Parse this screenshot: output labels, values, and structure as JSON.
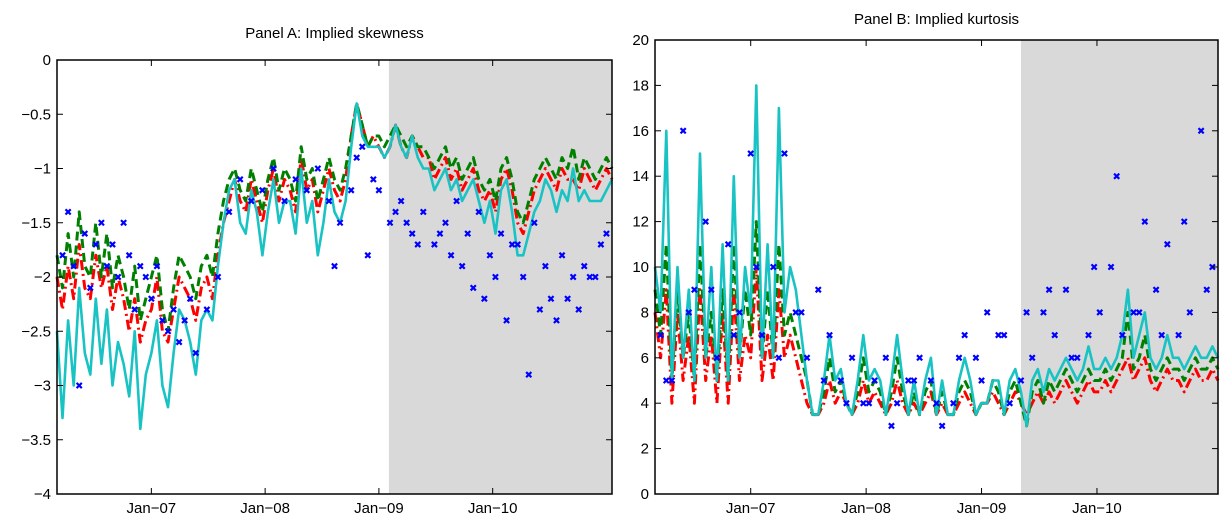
{
  "chart_data": [
    {
      "type": "line",
      "title": "Panel A: Implied skewness",
      "ylim": [
        -4,
        0
      ],
      "xlim": [
        0,
        100
      ],
      "yticks": [
        0,
        -0.5,
        -1,
        -1.5,
        -2,
        -2.5,
        -3,
        -3.5,
        -4
      ],
      "ytick_labels": [
        "0",
        "−0.5",
        "−1",
        "−1.5",
        "−2",
        "−2.5",
        "−3",
        "−3.5",
        "−4"
      ],
      "xtick_positions": [
        17,
        37.5,
        58,
        78.5
      ],
      "xtick_labels": [
        "Jan−07",
        "Jan−08",
        "Jan−09",
        "Jan−10"
      ],
      "shaded_region": [
        59.8,
        100
      ],
      "colors": {
        "markers": "#0000ff",
        "red": "#ff0000",
        "green": "#008000",
        "cyan": "#19c3c3",
        "shade": "#d9d9d9"
      },
      "x": [
        0,
        1,
        2,
        3,
        4,
        5,
        6,
        7,
        8,
        9,
        10,
        11,
        12,
        13,
        14,
        15,
        16,
        17,
        18,
        19,
        20,
        21,
        22,
        23,
        24,
        25,
        26,
        27,
        28,
        29,
        30,
        31,
        32,
        33,
        34,
        35,
        36,
        37,
        38,
        39,
        40,
        41,
        42,
        43,
        44,
        45,
        46,
        47,
        48,
        49,
        50,
        51,
        52,
        53,
        54,
        55,
        56,
        57,
        58,
        59,
        60,
        61,
        62,
        63,
        64,
        65,
        66,
        67,
        68,
        69,
        70,
        71,
        72,
        73,
        74,
        75,
        76,
        77,
        78,
        79,
        80,
        81,
        82,
        83,
        84,
        85,
        86,
        87,
        88,
        89,
        90,
        91,
        92,
        93,
        94,
        95,
        96,
        97,
        98,
        99,
        100
      ],
      "series": [
        {
          "style": "dashdot",
          "color": "#ff0000",
          "values": [
            -2.0,
            -2.3,
            -1.9,
            -2.2,
            -1.7,
            -2.1,
            -2.2,
            -1.8,
            -2.1,
            -1.9,
            -2.3,
            -2.0,
            -2.2,
            -2.5,
            -2.2,
            -2.6,
            -2.4,
            -2.3,
            -2.0,
            -2.5,
            -2.6,
            -2.3,
            -2.0,
            -2.1,
            -2.2,
            -2.4,
            -2.1,
            -2.0,
            -2.2,
            -1.8,
            -1.5,
            -1.3,
            -1.1,
            -1.3,
            -1.4,
            -1.1,
            -1.3,
            -1.5,
            -1.2,
            -1.0,
            -1.3,
            -1.1,
            -1.2,
            -1.4,
            -0.9,
            -1.2,
            -1.1,
            -1.4,
            -1.2,
            -1.0,
            -1.2,
            -1.3,
            -1.1,
            -0.7,
            -0.4,
            -0.6,
            -0.8,
            -0.7,
            -0.8,
            -0.9,
            -0.8,
            -0.6,
            -0.8,
            -0.9,
            -0.7,
            -0.8,
            -0.9,
            -0.9,
            -1.1,
            -1.0,
            -0.9,
            -1.1,
            -1.0,
            -1.2,
            -1.1,
            -1.0,
            -1.2,
            -1.3,
            -1.2,
            -1.4,
            -1.1,
            -1.0,
            -1.2,
            -1.5,
            -1.6,
            -1.4,
            -1.2,
            -1.1,
            -1.0,
            -1.1,
            -1.2,
            -1.0,
            -1.1,
            -1.1,
            -1.2,
            -1.0,
            -1.1,
            -1.2,
            -1.1,
            -1.0,
            -1.1
          ]
        },
        {
          "style": "dashed",
          "color": "#008000",
          "values": [
            -1.8,
            -2.1,
            -1.6,
            -2.0,
            -1.4,
            -1.9,
            -2.0,
            -1.5,
            -2.0,
            -1.6,
            -2.1,
            -1.8,
            -2.0,
            -2.3,
            -1.9,
            -2.4,
            -2.2,
            -2.0,
            -1.8,
            -2.3,
            -2.5,
            -2.1,
            -1.8,
            -1.9,
            -2.0,
            -2.2,
            -1.9,
            -1.8,
            -2.0,
            -1.6,
            -1.3,
            -1.1,
            -1.0,
            -1.2,
            -1.3,
            -1.0,
            -1.2,
            -1.4,
            -1.1,
            -0.9,
            -1.2,
            -1.0,
            -1.1,
            -1.3,
            -0.8,
            -1.1,
            -1.0,
            -1.3,
            -1.1,
            -0.9,
            -1.1,
            -1.2,
            -1.0,
            -0.7,
            -0.4,
            -0.6,
            -0.8,
            -0.7,
            -0.7,
            -0.8,
            -0.7,
            -0.6,
            -0.7,
            -0.8,
            -0.7,
            -0.8,
            -0.8,
            -0.9,
            -1.0,
            -0.9,
            -0.8,
            -1.0,
            -0.9,
            -1.1,
            -1.0,
            -0.9,
            -1.1,
            -1.2,
            -1.1,
            -1.3,
            -1.0,
            -0.9,
            -1.1,
            -1.4,
            -1.5,
            -1.3,
            -1.1,
            -1.0,
            -0.9,
            -1.0,
            -1.1,
            -0.9,
            -1.0,
            -0.8,
            -1.1,
            -0.9,
            -1.0,
            -1.1,
            -1.0,
            -0.9,
            -1.0
          ]
        },
        {
          "style": "solid",
          "color": "#19c3c3",
          "values": [
            -2.5,
            -3.3,
            -2.4,
            -3.0,
            -2.1,
            -2.7,
            -2.9,
            -2.2,
            -2.8,
            -2.3,
            -3.0,
            -2.6,
            -2.8,
            -3.1,
            -2.5,
            -3.4,
            -2.9,
            -2.7,
            -2.4,
            -3.0,
            -3.2,
            -2.7,
            -2.3,
            -2.4,
            -2.6,
            -2.9,
            -2.4,
            -2.3,
            -2.4,
            -1.9,
            -1.5,
            -1.2,
            -1.1,
            -1.5,
            -1.6,
            -1.2,
            -1.4,
            -1.8,
            -1.4,
            -1.1,
            -1.5,
            -1.3,
            -1.3,
            -1.6,
            -1.0,
            -1.5,
            -1.3,
            -1.8,
            -1.5,
            -1.1,
            -1.4,
            -1.5,
            -1.3,
            -0.8,
            -0.4,
            -0.7,
            -0.8,
            -0.8,
            -0.8,
            -0.9,
            -0.8,
            -0.6,
            -0.8,
            -0.9,
            -0.7,
            -0.9,
            -1.0,
            -1.0,
            -1.2,
            -1.1,
            -1.0,
            -1.2,
            -1.1,
            -1.3,
            -1.2,
            -1.1,
            -1.3,
            -1.5,
            -1.3,
            -1.6,
            -1.2,
            -1.1,
            -1.4,
            -1.8,
            -1.8,
            -1.6,
            -1.4,
            -1.3,
            -1.1,
            -1.2,
            -1.4,
            -1.2,
            -1.3,
            -1.0,
            -1.3,
            -1.2,
            -1.3,
            -1.3,
            -1.3,
            -1.2,
            -1.1
          ]
        }
      ],
      "markers": {
        "x": [
          1,
          2,
          3,
          4,
          5,
          6,
          7,
          8,
          9,
          10,
          11,
          12,
          13,
          14,
          15,
          16,
          17,
          18,
          19,
          20,
          21,
          22,
          23,
          24,
          25,
          27,
          29,
          31,
          33,
          35,
          37,
          39,
          41,
          43,
          45,
          47,
          49,
          51,
          53,
          55,
          57,
          58,
          60,
          62,
          64,
          66,
          68,
          70,
          72,
          74,
          76,
          78,
          80,
          82,
          84,
          86,
          88,
          90,
          92,
          94,
          96,
          98,
          99,
          50,
          54,
          56,
          61,
          63,
          65,
          69,
          71,
          73,
          75,
          77,
          79,
          81,
          83,
          85,
          87,
          89,
          91,
          93,
          95,
          97
        ],
        "y": [
          -1.8,
          -1.4,
          -1.9,
          -3.0,
          -1.6,
          -2.1,
          -1.7,
          -1.5,
          -1.9,
          -1.7,
          -2.0,
          -1.5,
          -1.8,
          -2.3,
          -1.9,
          -2.0,
          -2.2,
          -1.9,
          -2.4,
          -2.5,
          -2.3,
          -2.6,
          -2.4,
          -2.2,
          -2.7,
          -2.3,
          -2.0,
          -1.4,
          -1.1,
          -1.3,
          -1.2,
          -1.0,
          -1.3,
          -1.1,
          -1.2,
          -1.0,
          -1.3,
          -1.5,
          -1.2,
          -0.8,
          -1.1,
          -1.2,
          -1.5,
          -1.3,
          -1.6,
          -1.4,
          -1.7,
          -1.5,
          -1.3,
          -1.6,
          -1.4,
          -1.8,
          -1.6,
          -1.7,
          -2.0,
          -1.5,
          -1.9,
          -2.4,
          -2.2,
          -2.3,
          -2.0,
          -1.7,
          -1.6,
          -1.9,
          -0.9,
          -1.8,
          -1.4,
          -1.5,
          -1.7,
          -1.6,
          -1.8,
          -1.9,
          -2.1,
          -2.2,
          -2.0,
          -2.4,
          -1.7,
          -2.9,
          -2.3,
          -2.2,
          -1.8,
          -2.0,
          -1.9,
          -2.0
        ]
      }
    },
    {
      "type": "line",
      "title": "Panel B: Implied kurtosis",
      "ylim": [
        0,
        20
      ],
      "xlim": [
        0,
        100
      ],
      "yticks": [
        0,
        2,
        4,
        6,
        8,
        10,
        12,
        14,
        16,
        18,
        20
      ],
      "ytick_labels": [
        "0",
        "2",
        "4",
        "6",
        "8",
        "10",
        "12",
        "14",
        "16",
        "18",
        "20"
      ],
      "xtick_positions": [
        17,
        37.5,
        58,
        78.5
      ],
      "xtick_labels": [
        "Jan−07",
        "Jan−08",
        "Jan−09",
        "Jan−10"
      ],
      "shaded_region": [
        65,
        100
      ],
      "colors": {
        "markers": "#0000ff",
        "red": "#ff0000",
        "green": "#008000",
        "cyan": "#19c3c3",
        "shade": "#d9d9d9"
      },
      "x": [
        0,
        1,
        2,
        3,
        4,
        5,
        6,
        7,
        8,
        9,
        10,
        11,
        12,
        13,
        14,
        15,
        16,
        17,
        18,
        19,
        20,
        21,
        22,
        23,
        24,
        25,
        26,
        27,
        28,
        29,
        30,
        31,
        32,
        33,
        34,
        35,
        36,
        37,
        38,
        39,
        40,
        41,
        42,
        43,
        44,
        45,
        46,
        47,
        48,
        49,
        50,
        51,
        52,
        53,
        54,
        55,
        56,
        57,
        58,
        59,
        60,
        61,
        62,
        63,
        64,
        65,
        66,
        67,
        68,
        69,
        70,
        71,
        72,
        73,
        74,
        75,
        76,
        77,
        78,
        79,
        80,
        81,
        82,
        83,
        84,
        85,
        86,
        87,
        88,
        89,
        90,
        91,
        92,
        93,
        94,
        95,
        96,
        97,
        98,
        99,
        100
      ],
      "series": [
        {
          "style": "dashdot",
          "color": "#ff0000",
          "values": [
            8,
            6,
            9,
            4,
            8,
            5,
            7,
            4,
            9,
            5,
            7,
            4,
            8,
            4,
            9,
            5,
            7,
            6,
            10,
            5,
            7,
            5,
            9,
            6,
            7,
            6,
            5,
            4,
            3.5,
            3.5,
            4,
            5,
            4,
            4.5,
            4,
            3.5,
            4,
            5,
            4,
            4.5,
            4,
            3.5,
            4,
            5,
            4,
            3.5,
            4,
            3.5,
            4,
            4.5,
            3.5,
            4,
            3.5,
            3.5,
            4,
            4.5,
            4,
            3.5,
            4,
            4,
            4.5,
            4,
            3.5,
            4,
            4.5,
            4,
            3.5,
            4,
            4.5,
            4,
            4.5,
            4,
            4.5,
            5,
            4.5,
            4,
            4.5,
            5,
            4.5,
            4.5,
            5,
            4.5,
            5,
            5.5,
            6,
            5,
            5.5,
            6,
            5,
            4.5,
            5,
            5.5,
            5,
            5,
            4.5,
            5,
            5.5,
            5,
            5,
            5.5,
            5
          ]
        },
        {
          "style": "dashed",
          "color": "#008000",
          "values": [
            9,
            7,
            11,
            5,
            9,
            6,
            8,
            5,
            11,
            6,
            8,
            5,
            9,
            5,
            11,
            6,
            9,
            7,
            12,
            6,
            9,
            6,
            11,
            7,
            8,
            7,
            6,
            5,
            3.5,
            3.5,
            4.5,
            6,
            4.5,
            5,
            4,
            3.5,
            4.5,
            6,
            4.5,
            5,
            4.5,
            3.5,
            4.5,
            6,
            4.5,
            3.5,
            4.5,
            3.5,
            4.5,
            5,
            3.5,
            4.5,
            3.5,
            3.5,
            4.5,
            5,
            4.5,
            3.5,
            4,
            4,
            5,
            4.5,
            3.5,
            4.5,
            5,
            4,
            3,
            4.5,
            5,
            4,
            5,
            4.5,
            5,
            5.5,
            5,
            4.5,
            5,
            5.5,
            5,
            5,
            5.5,
            5,
            5.5,
            6,
            8,
            5.5,
            6,
            7,
            5.5,
            5,
            5.5,
            6,
            5.5,
            5.5,
            5,
            5.5,
            6,
            5.5,
            5.5,
            6,
            5.5
          ]
        },
        {
          "style": "solid",
          "color": "#19c3c3",
          "values": [
            10,
            8,
            16,
            5,
            10,
            6,
            9,
            5,
            15,
            6,
            10,
            5,
            11,
            5,
            14,
            6,
            10,
            8,
            18,
            6,
            11,
            6,
            17,
            8,
            10,
            9,
            7,
            5,
            3.5,
            3.5,
            5,
            7,
            5,
            5.5,
            4,
            3.5,
            5,
            7,
            5,
            5.5,
            5,
            3.5,
            5,
            7,
            5,
            3.5,
            5,
            3.5,
            5,
            6,
            3.5,
            5,
            3.5,
            3.5,
            5,
            6,
            5,
            3.5,
            4,
            4,
            5,
            5,
            3.5,
            5,
            5.5,
            4.5,
            3,
            5,
            5.5,
            4.5,
            5.5,
            5,
            5.5,
            6,
            5.5,
            5,
            5.5,
            6.5,
            5.5,
            5.5,
            6,
            5.5,
            6,
            7,
            9,
            6,
            7,
            8,
            6,
            5.5,
            6,
            7,
            6,
            6,
            5.5,
            6,
            6.5,
            6,
            6,
            6.5,
            6
          ]
        }
      ],
      "markers": {
        "x": [
          1,
          3,
          5,
          7,
          9,
          11,
          13,
          15,
          17,
          19,
          21,
          23,
          25,
          27,
          29,
          31,
          33,
          35,
          37,
          39,
          41,
          43,
          45,
          47,
          49,
          51,
          53,
          55,
          57,
          59,
          61,
          63,
          65,
          67,
          69,
          71,
          73,
          75,
          77,
          79,
          81,
          83,
          85,
          87,
          89,
          91,
          93,
          95,
          97,
          99,
          2,
          6,
          10,
          14,
          18,
          22,
          26,
          30,
          34,
          38,
          42,
          46,
          50,
          54,
          58,
          62,
          66,
          70,
          74,
          78,
          82,
          86,
          90,
          94,
          98
        ],
        "y": [
          7,
          5,
          16,
          9,
          12,
          6,
          11,
          8,
          15,
          7,
          10,
          15,
          8,
          6,
          9,
          7,
          5,
          6,
          4,
          5,
          6,
          4,
          5,
          6,
          5,
          3,
          4,
          7,
          6,
          8,
          7,
          4,
          5,
          6,
          8,
          7,
          9,
          6,
          7,
          8,
          10,
          7,
          8,
          12,
          9,
          11,
          7,
          8,
          16,
          10,
          5,
          8,
          9,
          7,
          10,
          6,
          8,
          5,
          4,
          4,
          3,
          5,
          4,
          6,
          5,
          7,
          8,
          9,
          6,
          10,
          14,
          8,
          7,
          12,
          9
        ]
      }
    }
  ]
}
